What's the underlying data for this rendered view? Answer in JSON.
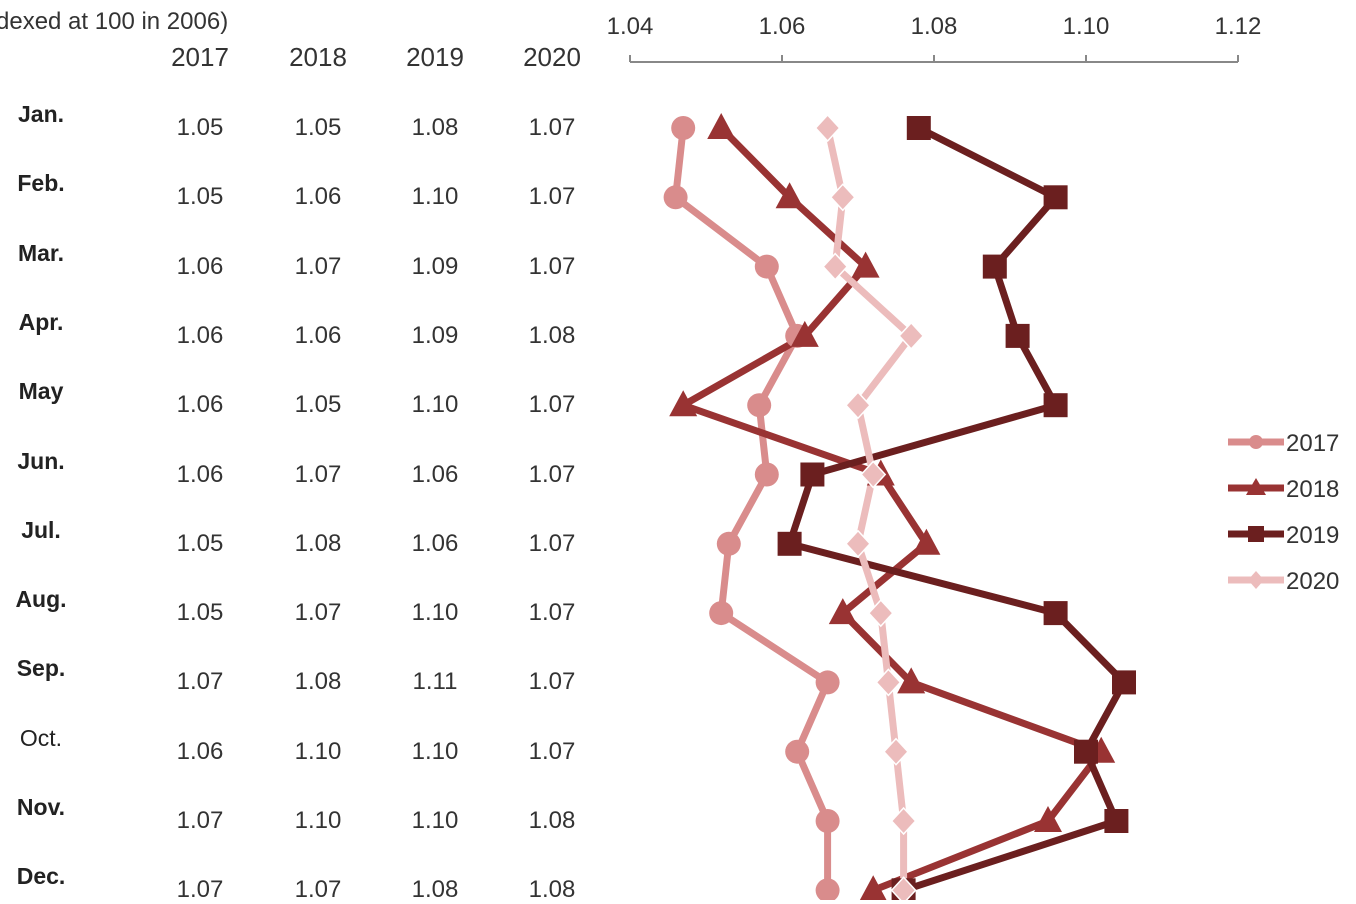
{
  "subtitle": "dexed at 100 in 2006)",
  "chart_data": {
    "type": "line",
    "orientation": "vertical-categories",
    "categories": [
      "Jan.",
      "Feb.",
      "Mar.",
      "Apr.",
      "May",
      "Jun.",
      "Jul.",
      "Aug.",
      "Sep.",
      "Oct.",
      "Nov.",
      "Dec."
    ],
    "value_axis": {
      "range": [
        1.04,
        1.12
      ],
      "ticks": [
        "1.04",
        "1.06",
        "1.08",
        "1.10",
        "1.12"
      ],
      "position": "top"
    },
    "grid": false,
    "legend_position": "right",
    "series": [
      {
        "name": "2017",
        "marker": "circle",
        "color": "#d98c8c",
        "table": [
          "1.05",
          "1.05",
          "1.06",
          "1.06",
          "1.06",
          "1.06",
          "1.05",
          "1.05",
          "1.07",
          "1.06",
          "1.07",
          "1.07"
        ],
        "values": [
          1.047,
          1.046,
          1.058,
          1.062,
          1.057,
          1.058,
          1.053,
          1.052,
          1.066,
          1.062,
          1.066,
          1.066
        ]
      },
      {
        "name": "2018",
        "marker": "triangle",
        "color": "#993333",
        "table": [
          "1.05",
          "1.06",
          "1.07",
          "1.06",
          "1.05",
          "1.07",
          "1.08",
          "1.07",
          "1.08",
          "1.10",
          "1.10",
          "1.07"
        ],
        "values": [
          1.052,
          1.061,
          1.071,
          1.063,
          1.047,
          1.073,
          1.079,
          1.068,
          1.077,
          1.102,
          1.095,
          1.072
        ]
      },
      {
        "name": "2019",
        "marker": "square",
        "color": "#6b1f1f",
        "table": [
          "1.08",
          "1.10",
          "1.09",
          "1.09",
          "1.10",
          "1.06",
          "1.06",
          "1.10",
          "1.11",
          "1.10",
          "1.10",
          "1.08"
        ],
        "values": [
          1.078,
          1.096,
          1.088,
          1.091,
          1.096,
          1.064,
          1.061,
          1.096,
          1.105,
          1.1,
          1.104,
          1.076
        ]
      },
      {
        "name": "2020",
        "marker": "diamond",
        "color": "#ecbcbc",
        "table": [
          "1.07",
          "1.07",
          "1.07",
          "1.08",
          "1.07",
          "1.07",
          "1.07",
          "1.07",
          "1.07",
          "1.07",
          "1.08",
          "1.08"
        ],
        "values": [
          1.066,
          1.068,
          1.067,
          1.077,
          1.07,
          1.072,
          1.07,
          1.073,
          1.074,
          1.075,
          1.076,
          1.076
        ]
      }
    ]
  }
}
